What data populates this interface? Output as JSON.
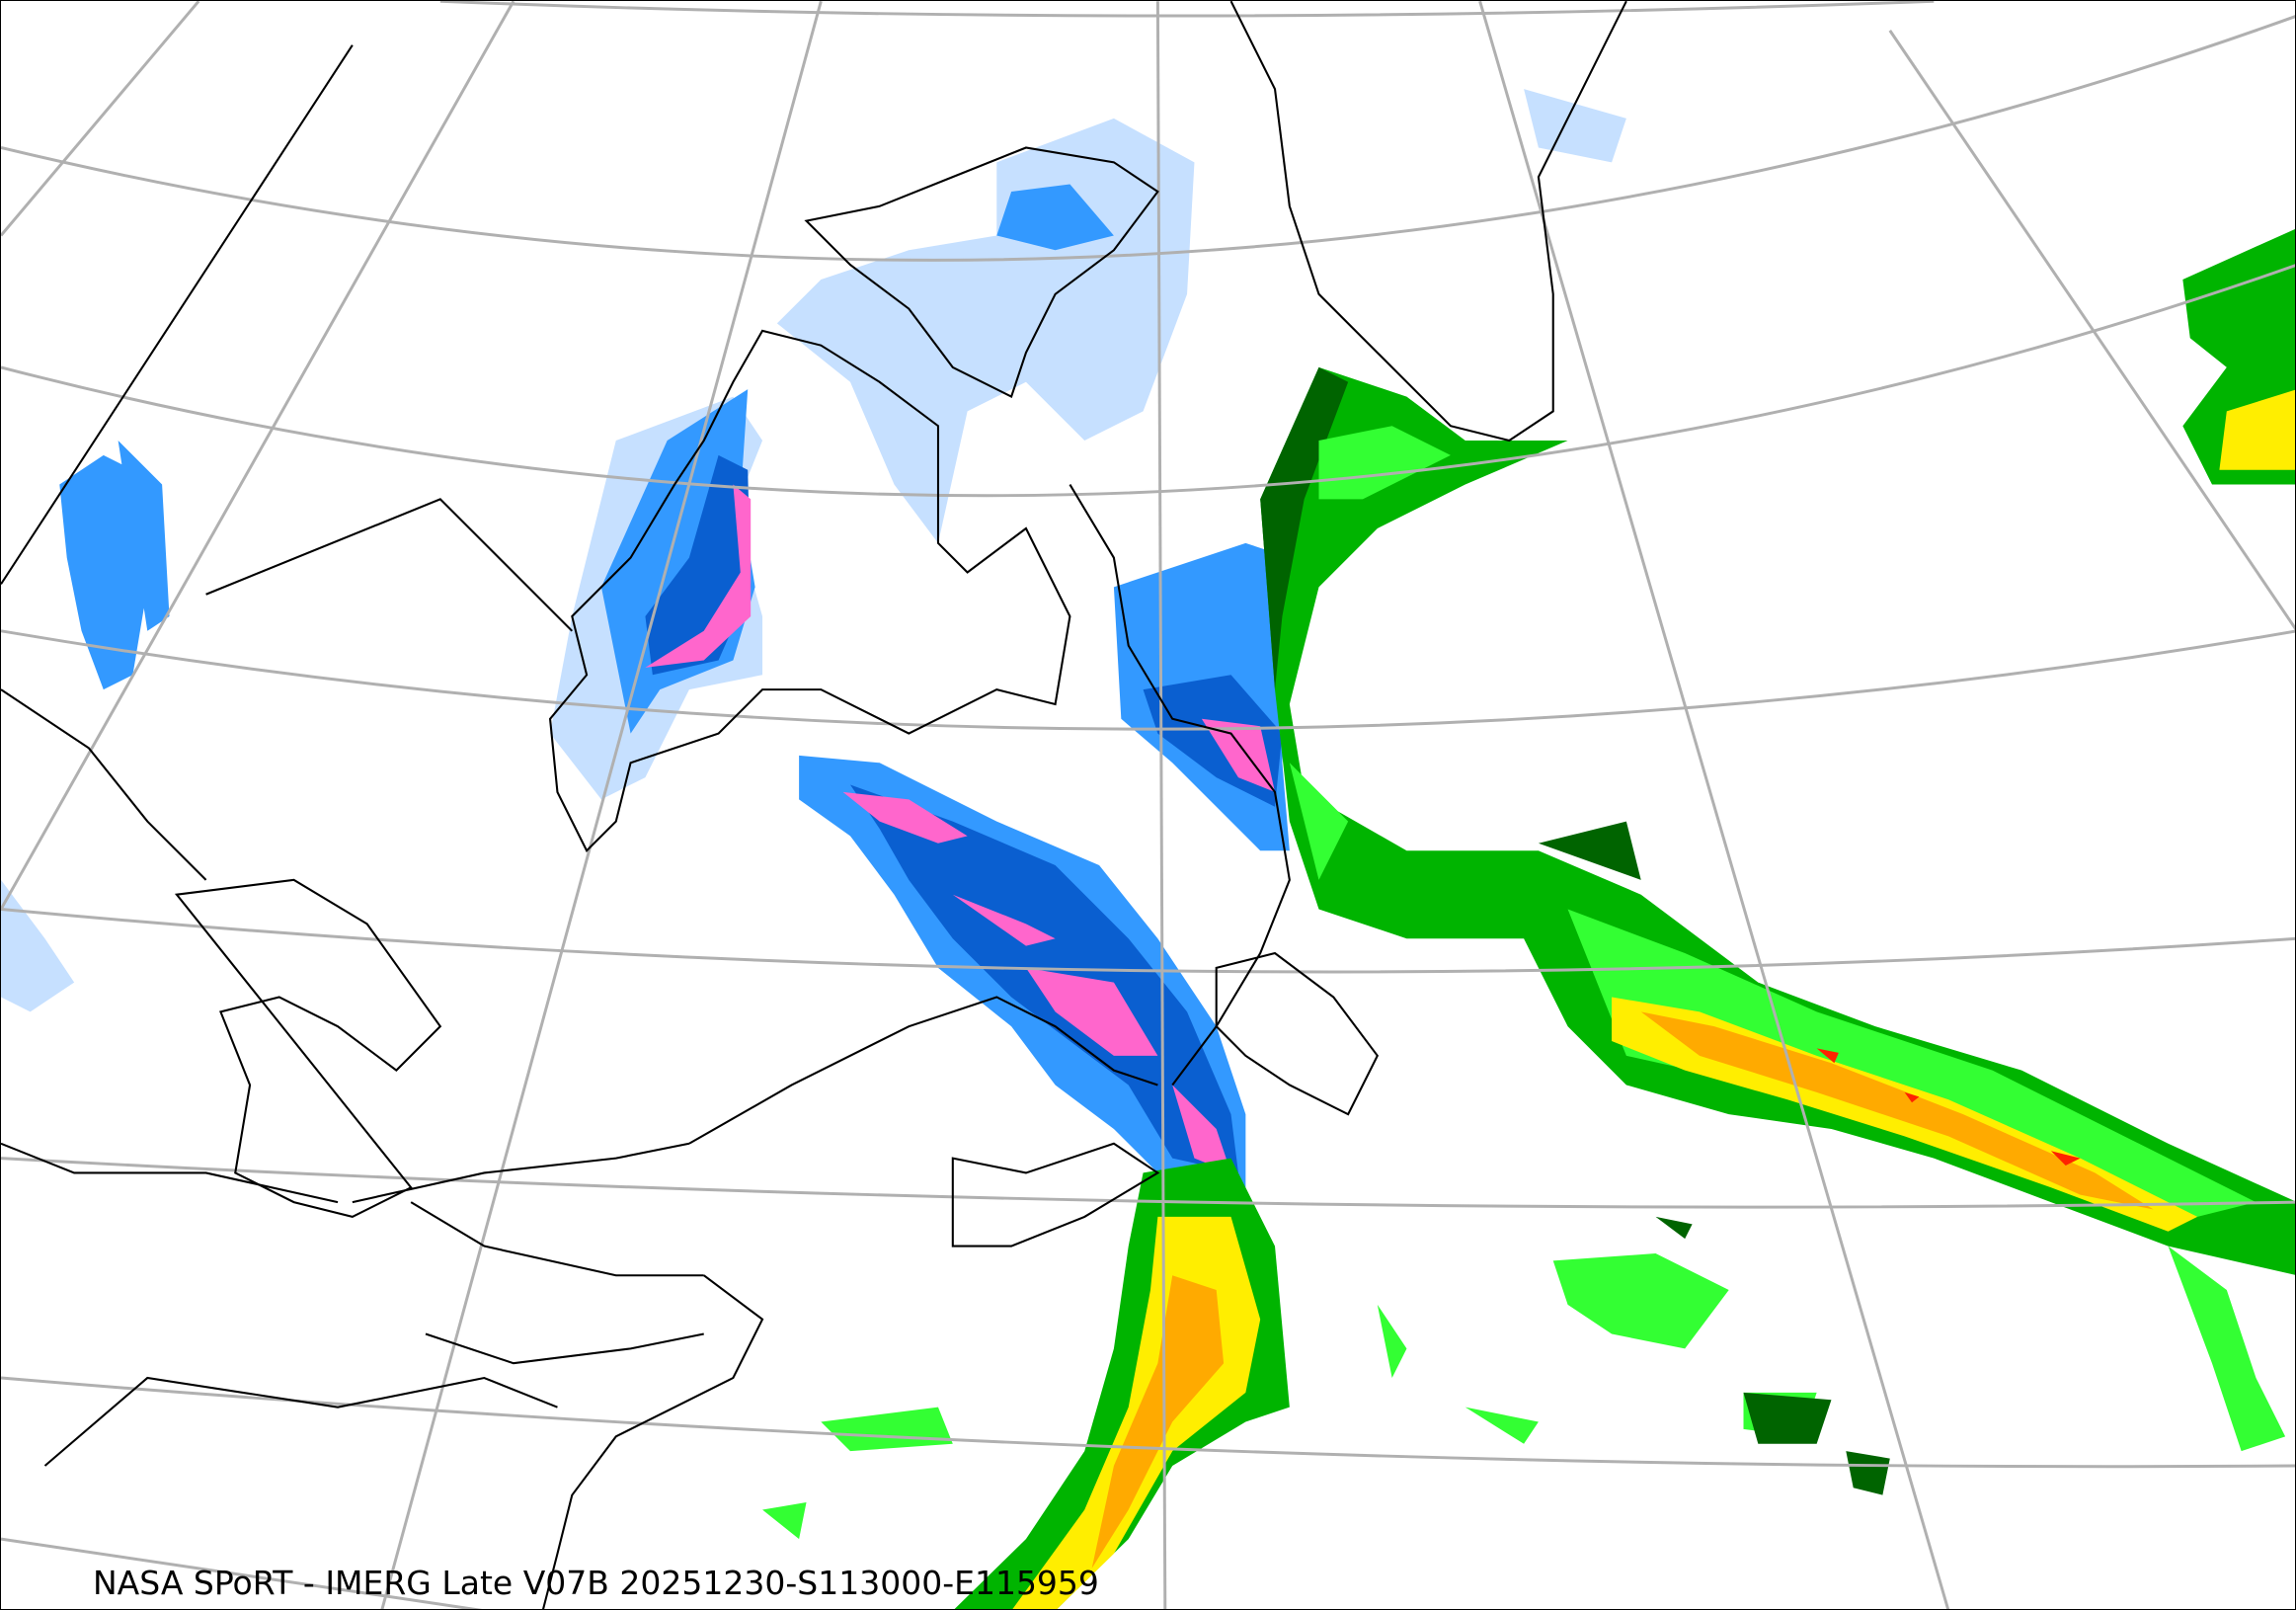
{
  "caption": "NASA SPoRT - IMERG Late V07B 20251230-S113000-E115959",
  "colors": {
    "precip_light_blue": "#c6e0ff",
    "precip_blue": "#3399ff",
    "precip_dark_blue": "#0a5fd0",
    "precip_pink": "#ff66cc",
    "precip_dark_green": "#006400",
    "precip_green": "#00b400",
    "precip_light_green": "#33ff33",
    "precip_yellow_green": "#ccff33",
    "precip_yellow": "#ffee00",
    "precip_orange": "#ffaa00",
    "precip_red": "#ff2200",
    "graticule": "#b0b0b0",
    "coastline": "#000000"
  }
}
